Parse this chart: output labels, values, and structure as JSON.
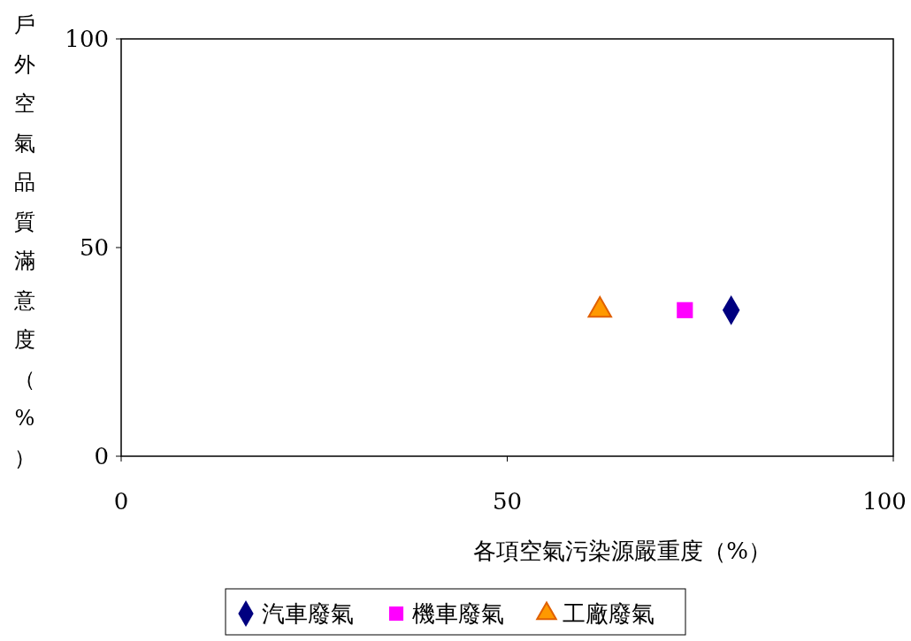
{
  "chart_data": {
    "type": "scatter",
    "xlabel": "各項空氣污染源嚴重度（%）",
    "ylabel": "戶外空氣品質滿意度（%）",
    "xlim": [
      0,
      100
    ],
    "ylim": [
      0,
      100
    ],
    "xticks": [
      0,
      50,
      100
    ],
    "yticks": [
      0,
      50,
      100
    ],
    "grid": false,
    "legend": "bottom",
    "series": [
      {
        "name": "汽車廢氣",
        "color": "#000080",
        "marker": "diamond",
        "x": [
          79
        ],
        "values": [
          35
        ]
      },
      {
        "name": "機車廢氣",
        "color": "#ff00ff",
        "marker": "square",
        "x": [
          73
        ],
        "values": [
          35
        ]
      },
      {
        "name": "工廠廢氣",
        "color": "#ff9900",
        "marker": "triangle",
        "x": [
          62
        ],
        "values": [
          35
        ]
      }
    ]
  }
}
